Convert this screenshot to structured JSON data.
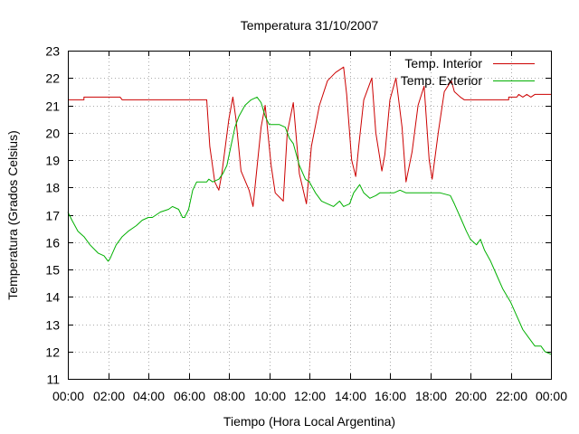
{
  "chart_data": {
    "type": "line",
    "title": "Temperatura 31/10/2007",
    "xlabel": "Tiempo (Hora Local Argentina)",
    "ylabel": "Temperatura (Grados Celsius)",
    "xlim": [
      0,
      24
    ],
    "ylim": [
      11,
      23
    ],
    "grid": true,
    "legend_position": "top-right",
    "x_tick_labels": [
      "00:00",
      "02:00",
      "04:00",
      "06:00",
      "08:00",
      "10:00",
      "12:00",
      "14:00",
      "16:00",
      "18:00",
      "20:00",
      "22:00",
      "00:00"
    ],
    "y_ticks": [
      11,
      12,
      13,
      14,
      15,
      16,
      17,
      18,
      19,
      20,
      21,
      22,
      23
    ],
    "series": [
      {
        "name": "Temp. Interior",
        "color": "#cc0000",
        "x": [
          0,
          0.8,
          0.8,
          1.5,
          2.6,
          2.7,
          4,
          5,
          6,
          6.9,
          7.05,
          7.3,
          7.5,
          7.65,
          8,
          8.2,
          8.35,
          8.6,
          9,
          9.2,
          9.6,
          9.8,
          10.1,
          10.3,
          10.7,
          10.9,
          11.2,
          11.5,
          11.85,
          12.1,
          12.5,
          12.9,
          13.3,
          13.7,
          13.85,
          14.1,
          14.3,
          14.45,
          14.7,
          15.1,
          15.3,
          15.6,
          15.75,
          16,
          16.3,
          16.6,
          16.8,
          17.1,
          17.4,
          17.7,
          17.95,
          18.1,
          18.4,
          18.7,
          19.05,
          19.2,
          19.5,
          19.7,
          20,
          21,
          21.9,
          21.9,
          22.3,
          22.4,
          22.6,
          22.8,
          23,
          23.2,
          23.5,
          24
        ],
        "values": [
          21.2,
          21.2,
          21.3,
          21.3,
          21.3,
          21.2,
          21.2,
          21.2,
          21.2,
          21.2,
          19.5,
          18.2,
          17.9,
          18.5,
          20.5,
          21.3,
          20.5,
          18.6,
          17.9,
          17.3,
          20.2,
          21,
          18.8,
          17.8,
          17.5,
          20,
          21.1,
          18.5,
          17.4,
          19.5,
          21,
          21.9,
          22.2,
          22.4,
          21.4,
          19,
          18.4,
          19.5,
          21.2,
          22,
          20,
          18.6,
          19.2,
          21.2,
          22,
          20.2,
          18.2,
          19.3,
          21,
          21.7,
          19,
          18.3,
          20,
          21.5,
          21.9,
          21.5,
          21.3,
          21.2,
          21.2,
          21.2,
          21.2,
          21.3,
          21.3,
          21.4,
          21.3,
          21.4,
          21.3,
          21.4,
          21.4,
          21.4
        ]
      },
      {
        "name": "Temp. Exterior",
        "color": "#00b000",
        "x": [
          0,
          0.2,
          0.5,
          0.8,
          1.1,
          1.5,
          1.8,
          2,
          2.1,
          2.4,
          2.7,
          3,
          3.4,
          3.7,
          4,
          4.2,
          4.6,
          5,
          5.2,
          5.5,
          5.7,
          5.8,
          6,
          6.2,
          6.4,
          6.9,
          7,
          7.2,
          7.5,
          7.7,
          7.9,
          8.1,
          8.3,
          8.5,
          8.8,
          9.1,
          9.4,
          9.6,
          9.8,
          10,
          10.2,
          10.5,
          10.8,
          11,
          11.2,
          11.5,
          11.8,
          12,
          12.3,
          12.6,
          12.9,
          13.2,
          13.5,
          13.7,
          14,
          14.2,
          14.5,
          14.7,
          15,
          15.3,
          15.5,
          15.8,
          16.2,
          16.5,
          16.8,
          17,
          17.3,
          17.6,
          18,
          18.5,
          19,
          19.2,
          19.5,
          19.8,
          20,
          20.3,
          20.5,
          20.7,
          21,
          21.3,
          21.6,
          22,
          22.3,
          22.6,
          22.9,
          23.2,
          23.5,
          23.7,
          24
        ],
        "values": [
          17.1,
          16.8,
          16.4,
          16.2,
          15.9,
          15.6,
          15.5,
          15.3,
          15.4,
          15.9,
          16.2,
          16.4,
          16.6,
          16.8,
          16.9,
          16.9,
          17.1,
          17.2,
          17.3,
          17.2,
          16.9,
          16.9,
          17.2,
          17.9,
          18.2,
          18.2,
          18.3,
          18.2,
          18.3,
          18.5,
          18.8,
          19.5,
          20.2,
          20.6,
          21,
          21.2,
          21.3,
          21.1,
          20.6,
          20.3,
          20.3,
          20.3,
          20.2,
          19.8,
          19.6,
          18.8,
          18.3,
          18.2,
          17.8,
          17.5,
          17.4,
          17.3,
          17.5,
          17.3,
          17.4,
          17.8,
          18.1,
          17.8,
          17.6,
          17.7,
          17.8,
          17.8,
          17.8,
          17.9,
          17.8,
          17.8,
          17.8,
          17.8,
          17.8,
          17.8,
          17.7,
          17.4,
          16.9,
          16.4,
          16.1,
          15.9,
          16.1,
          15.7,
          15.3,
          14.8,
          14.3,
          13.8,
          13.3,
          12.8,
          12.5,
          12.2,
          12.2,
          12,
          11.9
        ]
      }
    ]
  }
}
